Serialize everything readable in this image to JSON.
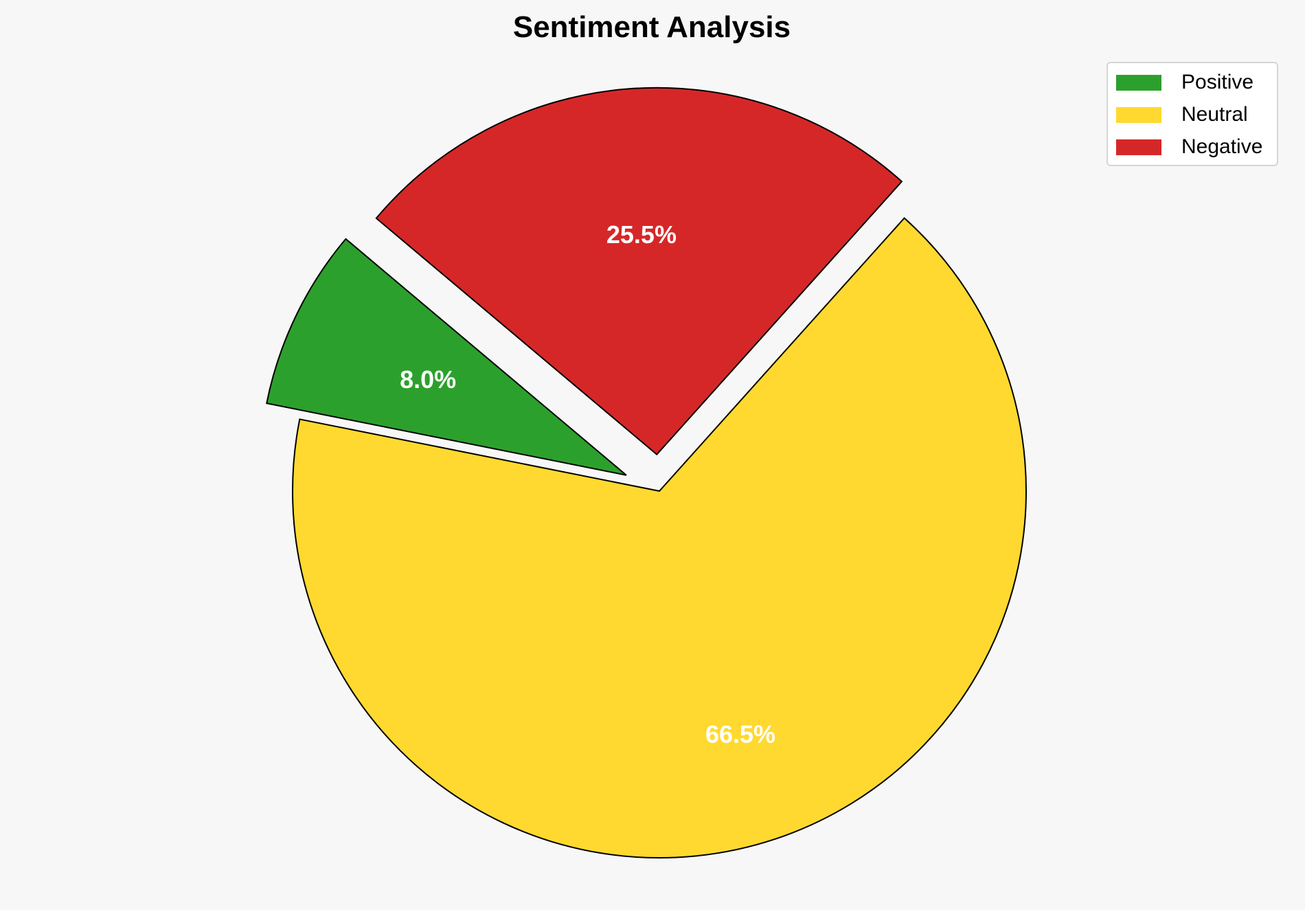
{
  "chart_data": {
    "type": "pie",
    "title": "Sentiment Analysis",
    "categories": [
      "Positive",
      "Neutral",
      "Negative"
    ],
    "values": [
      8.0,
      66.5,
      25.5
    ],
    "labels": [
      "8.0%",
      "66.5%",
      "25.5%"
    ],
    "colors": [
      "#2ca02c",
      "#ffd92f",
      "#d62728"
    ],
    "explode": [
      0.1,
      0,
      0.1
    ],
    "legend_position": "top-right"
  }
}
